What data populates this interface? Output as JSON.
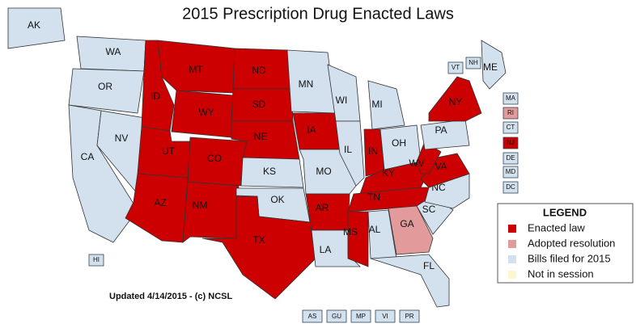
{
  "title": "2015 Prescription Drug Enacted Laws",
  "note": "Updated 4/14/2015 - (c) NCSL",
  "legend": {
    "title": "LEGEND",
    "items": [
      {
        "label": "Enacted law",
        "color": "#cc0000"
      },
      {
        "label": "Adopted resolution",
        "color": "#e39a9a"
      },
      {
        "label": "Bills filed for 2015",
        "color": "#d3e1ee"
      },
      {
        "label": "Not in session",
        "color": "#fbf7cf"
      }
    ]
  },
  "states": [
    {
      "label": "AK",
      "color": "#d3e1ee"
    },
    {
      "label": "WA",
      "color": "#d3e1ee"
    },
    {
      "label": "OR",
      "color": "#d3e1ee"
    },
    {
      "label": "CA",
      "color": "#d3e1ee"
    },
    {
      "label": "NV",
      "color": "#d3e1ee"
    },
    {
      "label": "ID",
      "color": "#cc0000"
    },
    {
      "label": "MT",
      "color": "#cc0000"
    },
    {
      "label": "WY",
      "color": "#cc0000"
    },
    {
      "label": "UT",
      "color": "#cc0000"
    },
    {
      "label": "CO",
      "color": "#cc0000"
    },
    {
      "label": "AZ",
      "color": "#cc0000"
    },
    {
      "label": "NM",
      "color": "#cc0000"
    },
    {
      "label": "ND",
      "color": "#cc0000"
    },
    {
      "label": "SD",
      "color": "#cc0000"
    },
    {
      "label": "NE",
      "color": "#cc0000"
    },
    {
      "label": "KS",
      "color": "#d3e1ee"
    },
    {
      "label": "OK",
      "color": "#d3e1ee"
    },
    {
      "label": "TX",
      "color": "#cc0000"
    },
    {
      "label": "MN",
      "color": "#d3e1ee"
    },
    {
      "label": "IA",
      "color": "#cc0000"
    },
    {
      "label": "MO",
      "color": "#d3e1ee"
    },
    {
      "label": "AR",
      "color": "#cc0000"
    },
    {
      "label": "LA",
      "color": "#d3e1ee"
    },
    {
      "label": "WI",
      "color": "#d3e1ee"
    },
    {
      "label": "IL",
      "color": "#d3e1ee"
    },
    {
      "label": "MI",
      "color": "#d3e1ee"
    },
    {
      "label": "IN",
      "color": "#cc0000"
    },
    {
      "label": "OH",
      "color": "#d3e1ee"
    },
    {
      "label": "KY",
      "color": "#cc0000"
    },
    {
      "label": "TN",
      "color": "#cc0000"
    },
    {
      "label": "MS",
      "color": "#cc0000"
    },
    {
      "label": "AL",
      "color": "#d3e1ee"
    },
    {
      "label": "GA",
      "color": "#e39a9a"
    },
    {
      "label": "FL",
      "color": "#d3e1ee"
    },
    {
      "label": "SC",
      "color": "#d3e1ee"
    },
    {
      "label": "NC",
      "color": "#d3e1ee"
    },
    {
      "label": "VA",
      "color": "#cc0000"
    },
    {
      "label": "WV",
      "color": "#cc0000"
    },
    {
      "label": "PA",
      "color": "#d3e1ee"
    },
    {
      "label": "NY",
      "color": "#cc0000"
    },
    {
      "label": "ME",
      "color": "#d3e1ee"
    },
    {
      "label": "HI",
      "color": "#d3e1ee"
    },
    {
      "label": "VT",
      "color": "#d3e1ee"
    },
    {
      "label": "NH",
      "color": "#d3e1ee"
    },
    {
      "label": "MA",
      "color": "#d3e1ee"
    },
    {
      "label": "RI",
      "color": "#e39a9a"
    },
    {
      "label": "CT",
      "color": "#d3e1ee"
    },
    {
      "label": "NJ",
      "color": "#cc0000"
    },
    {
      "label": "DE",
      "color": "#d3e1ee"
    },
    {
      "label": "MD",
      "color": "#d3e1ee"
    },
    {
      "label": "DC",
      "color": "#d3e1ee"
    }
  ],
  "territories": [
    {
      "label": "AS",
      "color": "#d3e1ee"
    },
    {
      "label": "GU",
      "color": "#d3e1ee"
    },
    {
      "label": "MP",
      "color": "#d3e1ee"
    },
    {
      "label": "VI",
      "color": "#d3e1ee"
    },
    {
      "label": "PR",
      "color": "#d3e1ee"
    }
  ]
}
